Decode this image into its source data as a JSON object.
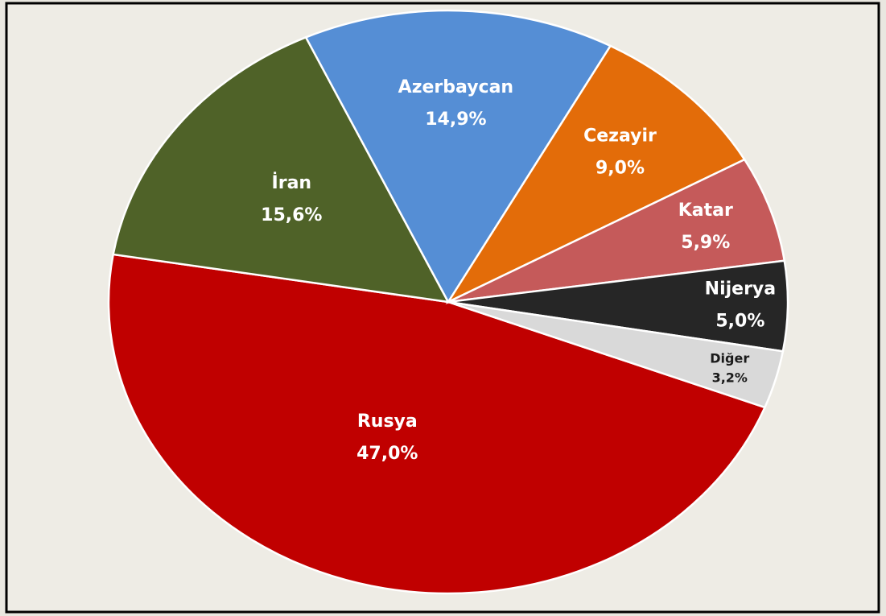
{
  "chart_data": {
    "type": "pie",
    "categories": [
      "Rusya",
      "İran",
      "Azerbaycan",
      "Cezayir",
      "Katar",
      "Nijerya",
      "Diğer"
    ],
    "values": [
      47.0,
      15.6,
      14.9,
      9.0,
      5.9,
      5.0,
      3.2
    ],
    "value_labels": [
      "47,0%",
      "15,6%",
      "14,9%",
      "9,0%",
      "5,9%",
      "5,0%",
      "3,2%"
    ],
    "colors": [
      "#c00000",
      "#4f6228",
      "#558ed5",
      "#e36c09",
      "#c55a5a",
      "#262626",
      "#d9d9d9"
    ]
  }
}
